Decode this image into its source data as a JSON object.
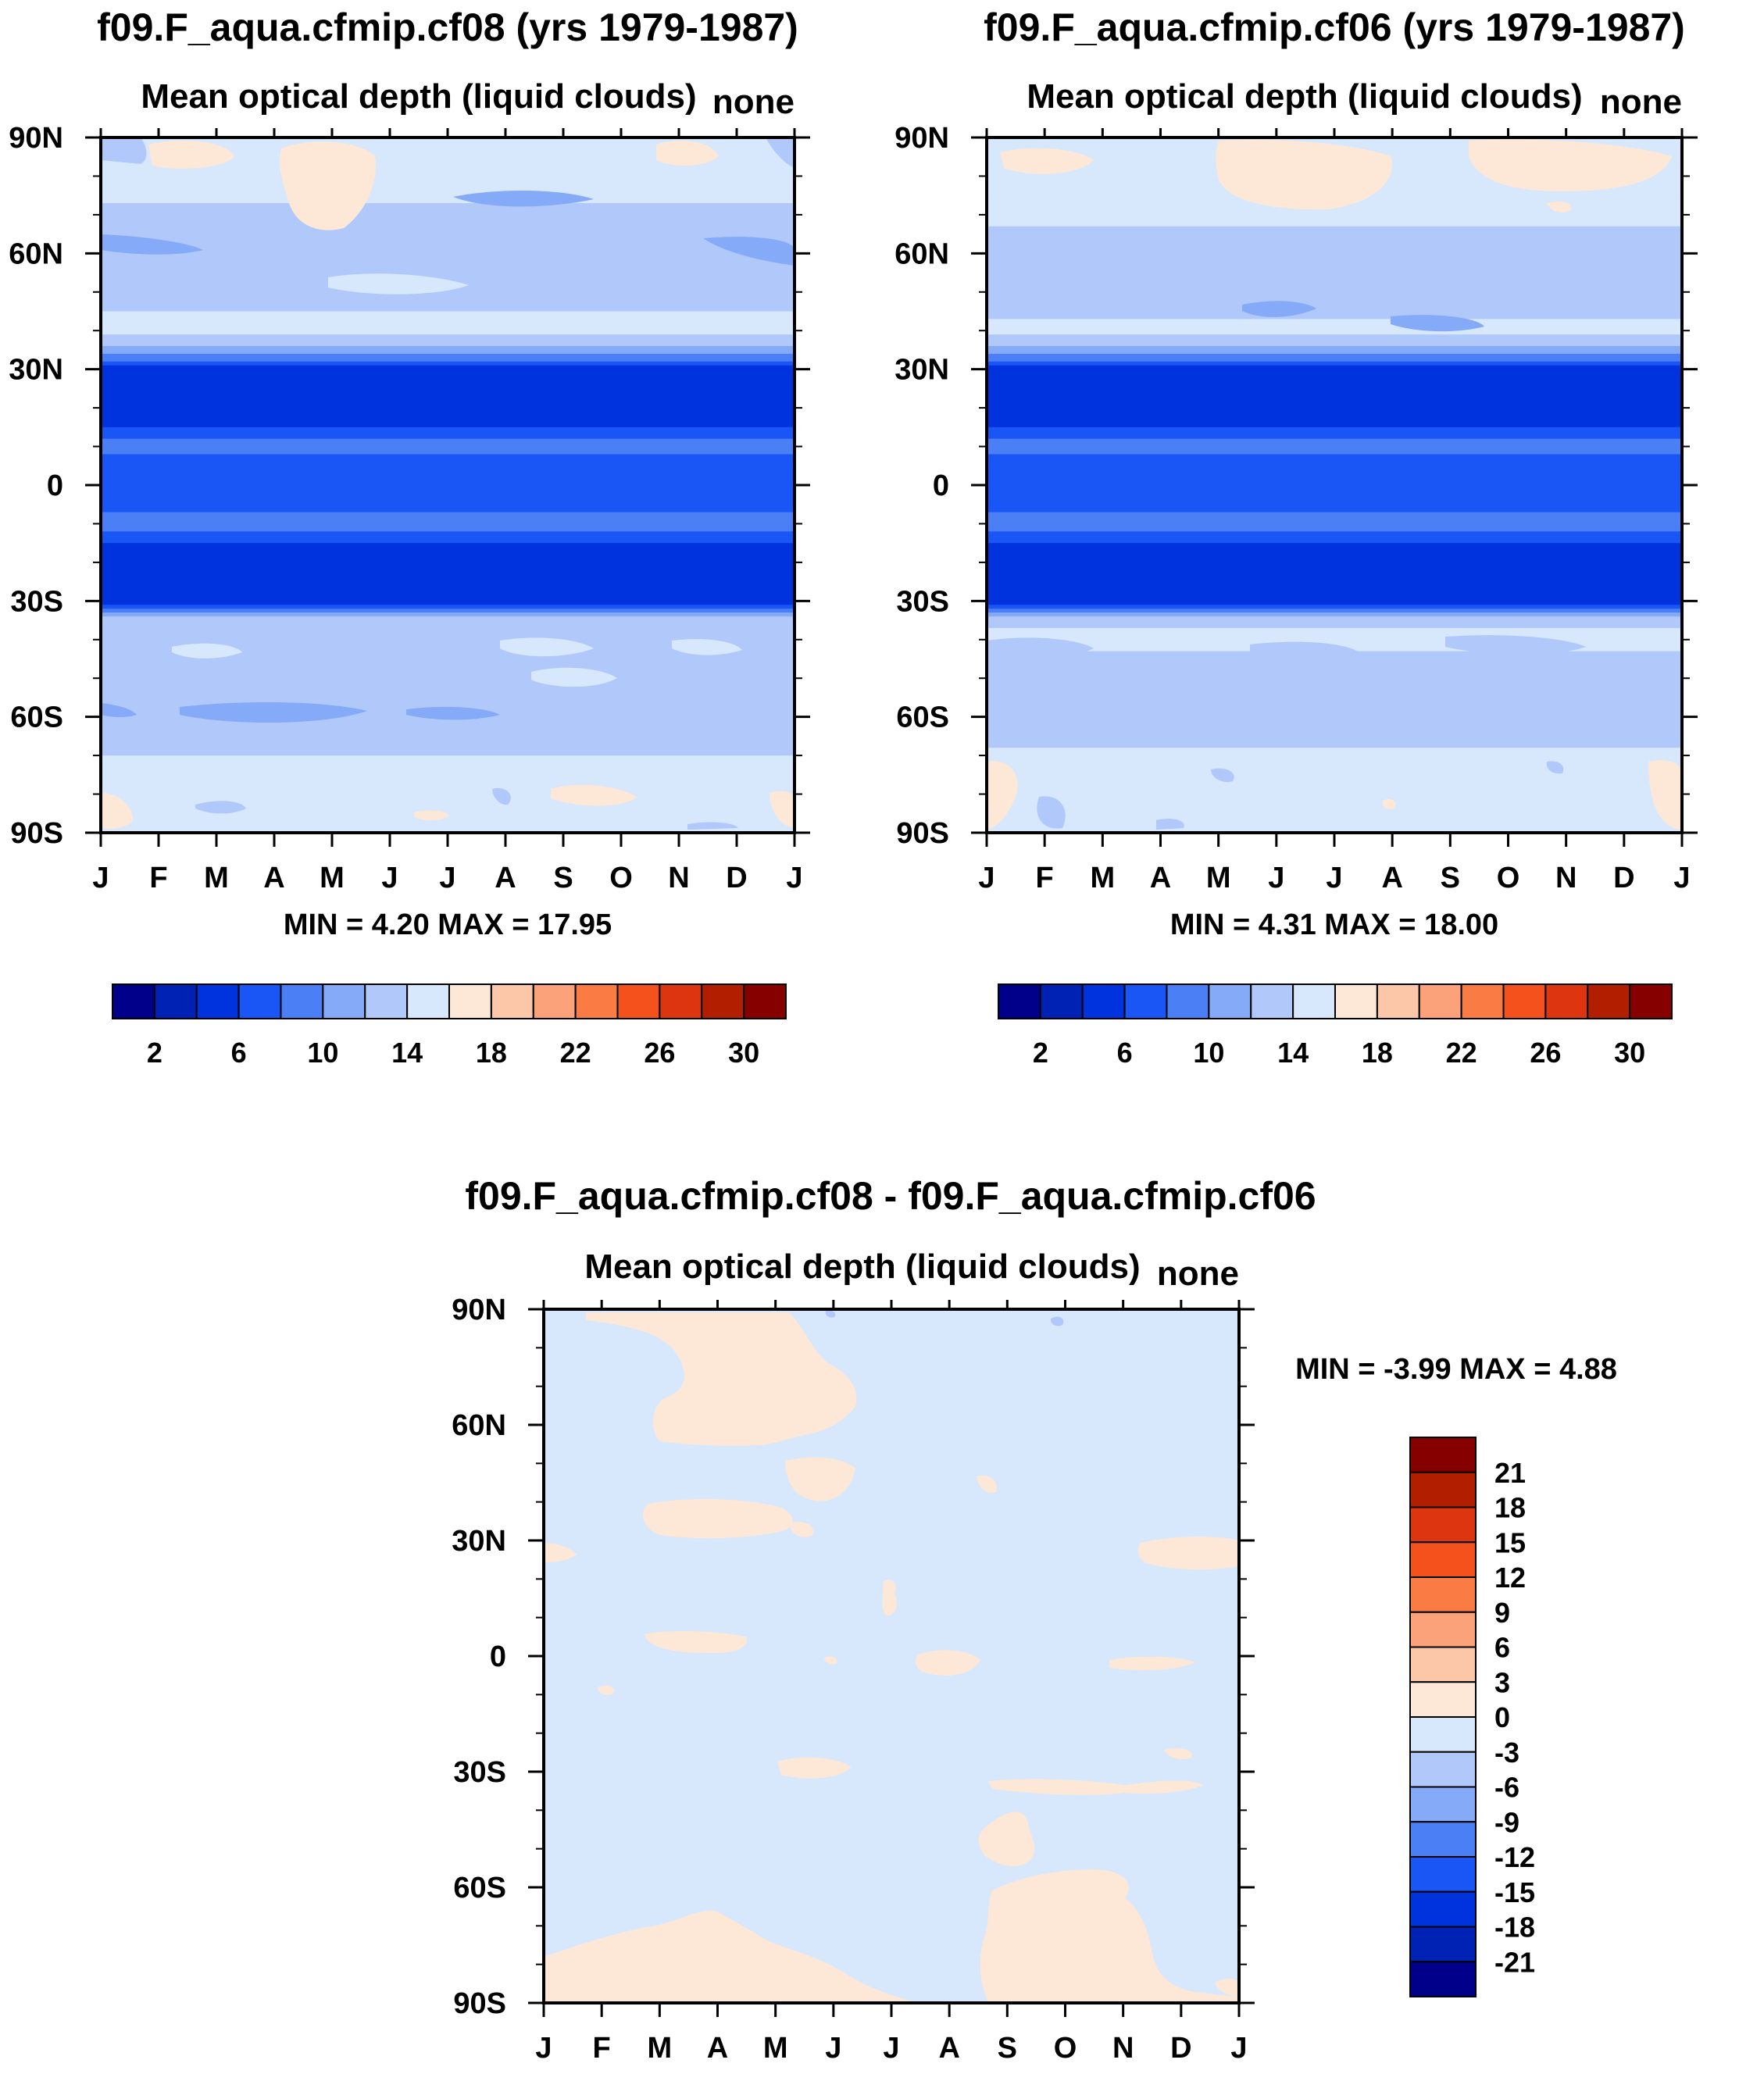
{
  "chart_data": [
    {
      "type": "contour",
      "title": "f09.F_aqua.cfmip.cf08 (yrs 1979-1987)",
      "subtitle": "Mean optical depth (liquid clouds)",
      "right_label": "none",
      "stats": "MIN =   4.20 MAX =  17.95",
      "x_ticks": [
        "J",
        "F",
        "M",
        "A",
        "M",
        "J",
        "J",
        "A",
        "S",
        "O",
        "N",
        "D",
        "J"
      ],
      "y_ticks": [
        "90N",
        "60N",
        "30N",
        "0",
        "30S",
        "60S",
        "90S"
      ],
      "min": 4.2,
      "max": 17.95,
      "levels": [
        2,
        4,
        6,
        8,
        10,
        12,
        14,
        16,
        18,
        20,
        22,
        24,
        26,
        28,
        30
      ],
      "colorbar_labels": [
        "2",
        "6",
        "10",
        "14",
        "18",
        "22",
        "26",
        "30"
      ],
      "zonal_profile": {
        "lat": [
          90,
          80,
          70,
          60,
          50,
          40,
          35,
          30,
          25,
          20,
          15,
          10,
          5,
          0,
          -5,
          -10,
          -15,
          -20,
          -25,
          -30,
          -35,
          -40,
          -50,
          -60,
          -70,
          -80,
          -90
        ],
        "value": [
          15,
          15,
          13.5,
          12.5,
          13.5,
          14.5,
          11,
          5,
          4.5,
          4.5,
          6,
          9,
          6.5,
          6,
          7,
          9,
          6,
          4.5,
          4.5,
          5,
          13.5,
          14,
          13,
          12,
          14,
          14.5,
          15
        ]
      }
    },
    {
      "type": "contour",
      "title": "f09.F_aqua.cfmip.cf06 (yrs 1979-1987)",
      "subtitle": "Mean optical depth (liquid clouds)",
      "right_label": "none",
      "stats": "MIN =   4.31 MAX =  18.00",
      "x_ticks": [
        "J",
        "F",
        "M",
        "A",
        "M",
        "J",
        "J",
        "A",
        "S",
        "O",
        "N",
        "D",
        "J"
      ],
      "y_ticks": [
        "90N",
        "60N",
        "30N",
        "0",
        "30S",
        "60S",
        "90S"
      ],
      "min": 4.31,
      "max": 18.0,
      "levels": [
        2,
        4,
        6,
        8,
        10,
        12,
        14,
        16,
        18,
        20,
        22,
        24,
        26,
        28,
        30
      ],
      "colorbar_labels": [
        "2",
        "6",
        "10",
        "14",
        "18",
        "22",
        "26",
        "30"
      ],
      "zonal_profile": {
        "lat": [
          90,
          80,
          70,
          60,
          50,
          40,
          35,
          30,
          25,
          20,
          15,
          10,
          5,
          0,
          -5,
          -10,
          -15,
          -20,
          -25,
          -30,
          -35,
          -40,
          -50,
          -60,
          -70,
          -80,
          -90
        ],
        "value": [
          15,
          15,
          14.5,
          12.5,
          13,
          14.5,
          11,
          5,
          4.5,
          4.5,
          6,
          9,
          6.5,
          6,
          7,
          9,
          6,
          4.5,
          4.5,
          5,
          13.5,
          14.5,
          13,
          12,
          14.5,
          14.5,
          15
        ]
      }
    },
    {
      "type": "contour",
      "title": "f09.F_aqua.cfmip.cf08 - f09.F_aqua.cfmip.cf06",
      "subtitle": "Mean optical depth (liquid clouds)",
      "right_label": "none",
      "stats": "MIN =  -3.99 MAX =   4.88",
      "x_ticks": [
        "J",
        "F",
        "M",
        "A",
        "M",
        "J",
        "J",
        "A",
        "S",
        "O",
        "N",
        "D",
        "J"
      ],
      "y_ticks": [
        "90N",
        "60N",
        "30N",
        "0",
        "30S",
        "60S",
        "90S"
      ],
      "min": -3.99,
      "max": 4.88,
      "levels": [
        -21,
        -18,
        -15,
        -12,
        -9,
        -6,
        -3,
        0,
        3,
        6,
        9,
        12,
        15,
        18,
        21
      ],
      "colorbar_labels": [
        "21",
        "18",
        "15",
        "12",
        "9",
        "6",
        "3",
        "0",
        "-3",
        "-6",
        "-9",
        "-12",
        "-15",
        "-18",
        "-21"
      ],
      "background_value": -1
    }
  ],
  "colors": {
    "colorbar": [
      "#00008b",
      "#0022b4",
      "#0033dd",
      "#1a55f5",
      "#4b7ff5",
      "#85aaf7",
      "#b0c9fa",
      "#d7e7fc",
      "#fde8d8",
      "#fcc7a8",
      "#fba27a",
      "#fb7b45",
      "#f5511d",
      "#dc3510",
      "#b21f00",
      "#870000"
    ],
    "background": "#ffffff"
  }
}
